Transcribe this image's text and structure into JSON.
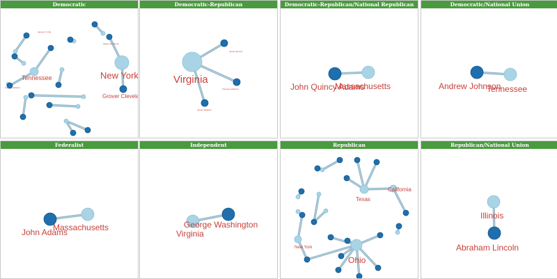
{
  "colors": {
    "header_bg": "#4a9a3f",
    "header_text": "#ffffff",
    "state_node": "#a9d4e6",
    "president_node": "#1f6fae",
    "edge": "#7fa9be",
    "label": "#c8413a"
  },
  "panels": [
    {
      "title": "Democratic",
      "states": [
        {
          "id": "s1",
          "label": "New York",
          "big": true
        },
        {
          "id": "s2",
          "label": "Tennessee",
          "big": true
        },
        {
          "id": "s3",
          "label": ""
        },
        {
          "id": "s4",
          "label": ""
        },
        {
          "id": "s5",
          "label": ""
        },
        {
          "id": "s6",
          "label": ""
        },
        {
          "id": "s7",
          "label": ""
        },
        {
          "id": "s8",
          "label": ""
        },
        {
          "id": "s9",
          "label": ""
        },
        {
          "id": "s10",
          "label": ""
        },
        {
          "id": "s11",
          "label": ""
        },
        {
          "id": "s12",
          "label": ""
        }
      ],
      "presidents": [
        {
          "id": "p1",
          "label": "Grover Cleveland",
          "big": true
        },
        {
          "id": "p2",
          "label": "Martin Van Buren"
        },
        {
          "id": "p3",
          "label": "Andrew Jackson"
        },
        {
          "id": "p4",
          "label": "James K. Polk"
        },
        {
          "id": "p5",
          "label": ""
        },
        {
          "id": "p6",
          "label": ""
        },
        {
          "id": "p7",
          "label": ""
        },
        {
          "id": "p8",
          "label": ""
        },
        {
          "id": "p9",
          "label": ""
        },
        {
          "id": "p10",
          "label": ""
        },
        {
          "id": "p11",
          "label": ""
        },
        {
          "id": "p12",
          "label": ""
        },
        {
          "id": "p13",
          "label": ""
        },
        {
          "id": "p14",
          "label": ""
        }
      ]
    },
    {
      "title": "Democratic-Republican",
      "states": [
        {
          "id": "s1",
          "label": "Virginia",
          "big": true
        }
      ],
      "presidents": [
        {
          "id": "p1",
          "label": "James Monroe"
        },
        {
          "id": "p2",
          "label": "Thomas Jefferson"
        },
        {
          "id": "p3",
          "label": "James Madison"
        }
      ]
    },
    {
      "title": "Democratic-Republican/National Republican",
      "states": [
        {
          "id": "s1",
          "label": "Massachusetts",
          "big": true
        }
      ],
      "presidents": [
        {
          "id": "p1",
          "label": "John Quincy Adams",
          "big": true
        }
      ]
    },
    {
      "title": "Democratic/National Union",
      "states": [
        {
          "id": "s1",
          "label": "Tennessee",
          "big": true
        }
      ],
      "presidents": [
        {
          "id": "p1",
          "label": "Andrew Johnson",
          "big": true
        }
      ]
    },
    {
      "title": "Federalist",
      "states": [
        {
          "id": "s1",
          "label": "Massachusetts",
          "big": true
        }
      ],
      "presidents": [
        {
          "id": "p1",
          "label": "John Adams",
          "big": true
        }
      ]
    },
    {
      "title": "Independent",
      "states": [
        {
          "id": "s1",
          "label": "Virginia",
          "big": true
        }
      ],
      "presidents": [
        {
          "id": "p1",
          "label": "George Washington",
          "big": true
        }
      ]
    },
    {
      "title": "Republican",
      "states": [
        {
          "id": "s1",
          "label": "Ohio",
          "big": true
        },
        {
          "id": "s2",
          "label": "New York",
          "big": true
        },
        {
          "id": "s3",
          "label": "Texas",
          "big": true
        },
        {
          "id": "s4",
          "label": "California",
          "big": true
        },
        {
          "id": "s5",
          "label": ""
        },
        {
          "id": "s6",
          "label": ""
        },
        {
          "id": "s7",
          "label": ""
        },
        {
          "id": "s8",
          "label": ""
        },
        {
          "id": "s9",
          "label": ""
        },
        {
          "id": "s10",
          "label": ""
        }
      ],
      "presidents": [
        {
          "id": "p1",
          "label": ""
        },
        {
          "id": "p2",
          "label": ""
        },
        {
          "id": "p3",
          "label": ""
        },
        {
          "id": "p4",
          "label": ""
        },
        {
          "id": "p5",
          "label": ""
        },
        {
          "id": "p6",
          "label": ""
        },
        {
          "id": "p7",
          "label": ""
        },
        {
          "id": "p8",
          "label": ""
        },
        {
          "id": "p9",
          "label": ""
        },
        {
          "id": "p10",
          "label": ""
        },
        {
          "id": "p11",
          "label": ""
        },
        {
          "id": "p12",
          "label": ""
        },
        {
          "id": "p13",
          "label": ""
        },
        {
          "id": "p14",
          "label": ""
        },
        {
          "id": "p15",
          "label": ""
        },
        {
          "id": "p16",
          "label": ""
        },
        {
          "id": "p17",
          "label": ""
        },
        {
          "id": "p18",
          "label": ""
        }
      ]
    },
    {
      "title": "Republican/National Union",
      "states": [
        {
          "id": "s1",
          "label": "Illinois",
          "big": true
        }
      ],
      "presidents": [
        {
          "id": "p1",
          "label": "Abraham Lincoln",
          "big": true
        }
      ]
    }
  ]
}
